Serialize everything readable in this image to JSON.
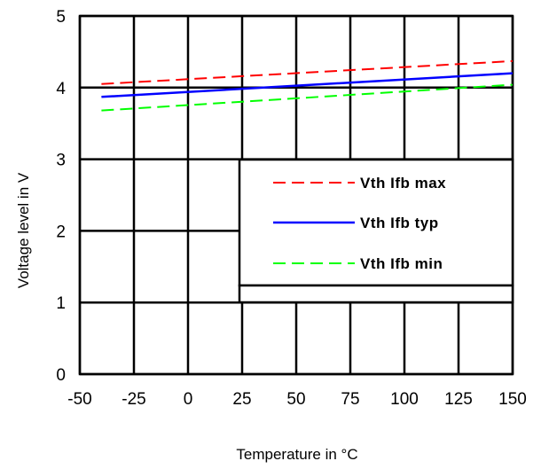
{
  "chart_data": {
    "type": "line",
    "title": "",
    "xlabel": "Temperature  in °C",
    "ylabel": "Voltage level in V",
    "xlim": [
      -50,
      150
    ],
    "ylim": [
      0,
      5
    ],
    "xticks": [
      -50,
      -25,
      0,
      25,
      50,
      75,
      100,
      125,
      150
    ],
    "yticks": [
      0,
      1,
      2,
      3,
      4,
      5
    ],
    "grid": true,
    "legend_position": "center-right",
    "series": [
      {
        "name": "Vth Ifb max",
        "color": "#ff0000",
        "dash": "dashed",
        "x": [
          -40,
          150
        ],
        "y": [
          4.05,
          4.37
        ]
      },
      {
        "name": "Vth Ifb typ",
        "color": "#0000ff",
        "dash": "solid",
        "x": [
          -40,
          150
        ],
        "y": [
          3.87,
          4.2
        ]
      },
      {
        "name": "Vth Ifb min",
        "color": "#00ff00",
        "dash": "dashed",
        "x": [
          -40,
          150
        ],
        "y": [
          3.68,
          4.04
        ]
      }
    ]
  }
}
